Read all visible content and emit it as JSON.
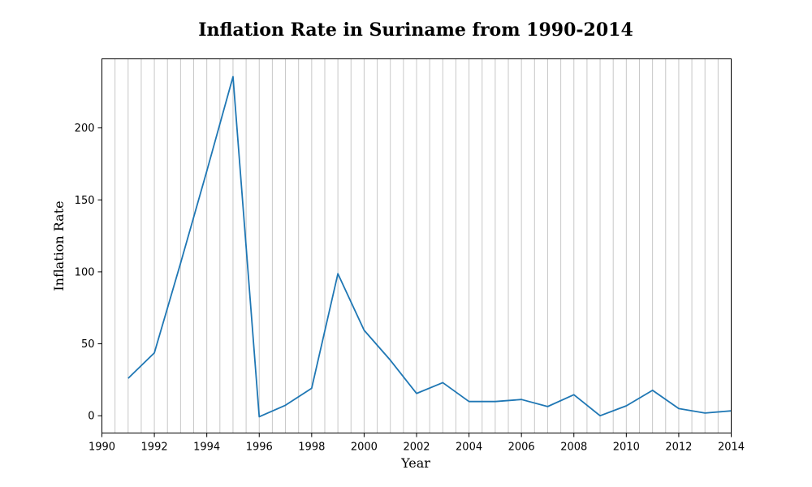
{
  "chart_data": {
    "type": "line",
    "title": "Inflation Rate in Suriname from 1990-2014",
    "xlabel": "Year",
    "ylabel": "Inflation Rate",
    "xlim": [
      1990,
      2014
    ],
    "ylim": [
      -12,
      248
    ],
    "x_ticks": [
      1990,
      1992,
      1994,
      1996,
      1998,
      2000,
      2002,
      2004,
      2006,
      2008,
      2010,
      2012,
      2014
    ],
    "x_tick_labels": [
      "1990",
      "1992",
      "1994",
      "1996",
      "1998",
      "2000",
      "2002",
      "2004",
      "2006",
      "2008",
      "2010",
      "2012",
      "2014"
    ],
    "y_ticks": [
      0,
      50,
      100,
      150,
      200
    ],
    "y_tick_labels": [
      "0",
      "50",
      "100",
      "150",
      "200"
    ],
    "grid": "vertical minor lines at every 0.5 year",
    "legend": "none",
    "series": [
      {
        "color": "#1f77b4",
        "x": [
          1991,
          1992,
          1993,
          1994,
          1995,
          1996,
          1997,
          1998,
          1999,
          2000,
          2001,
          2002,
          2003,
          2004,
          2005,
          2006,
          2007,
          2008,
          2009,
          2010,
          2011,
          2012,
          2013,
          2014
        ],
        "values": [
          26,
          43.7,
          106,
          170,
          235.6,
          -0.7,
          7.3,
          19.1,
          98.7,
          59.4,
          38.6,
          15.5,
          23,
          9.9,
          9.9,
          11.3,
          6.4,
          14.6,
          0,
          6.9,
          17.7,
          5,
          1.9,
          3.4
        ]
      }
    ]
  }
}
